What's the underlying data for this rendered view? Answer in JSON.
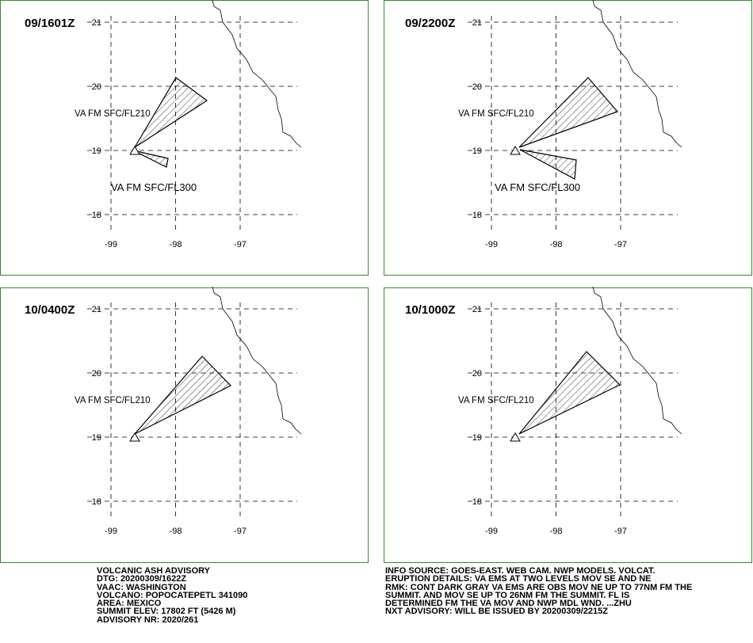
{
  "panels": [
    {
      "time": "09/1601Z",
      "labels": [
        "VA FM SFC/FL210",
        "VA FM SFC/FL300"
      ]
    },
    {
      "time": "09/2200Z",
      "labels": [
        "VA FM SFC/FL210",
        "VA FM SFC/FL300"
      ]
    },
    {
      "time": "10/0400Z",
      "labels": [
        "VA FM SFC/FL210"
      ]
    },
    {
      "time": "10/1000Z",
      "labels": [
        "VA FM SFC/FL210"
      ]
    }
  ],
  "lat_ticks": [
    21,
    20,
    19,
    18
  ],
  "lon_ticks": [
    -99,
    -98,
    -97
  ],
  "advisory_left": [
    "VOLCANIC ASH ADVISORY",
    "DTG: 20200309/1622Z",
    "VAAC: WASHINGTON",
    "VOLCANO: POPOCATEPETL 341090",
    "AREA: MEXICO",
    "SUMMIT ELEV: 17802 FT (5426 M)",
    "ADVISORY NR: 2020/261"
  ],
  "advisory_right": [
    "INFO SOURCE: GOES-EAST. WEB CAM. NWP MODELS. VOLCAT.",
    "ERUPTION DETAILS: VA EMS AT TWO LEVELS MOV SE AND NE",
    "RMK: CONT DARK GRAY VA EMS ARE OBS MOV NE UP TO 77NM FM THE",
    "SUMMIT. AND MOV SE UP TO 26NM FM THE SUMMIT. FL IS",
    "DETERMINED FM THE VA MOV AND NWP MDL WND. ...ZHU",
    "NXT ADVISORY: WILL BE ISSUED BY 20200309/2215Z"
  ]
}
